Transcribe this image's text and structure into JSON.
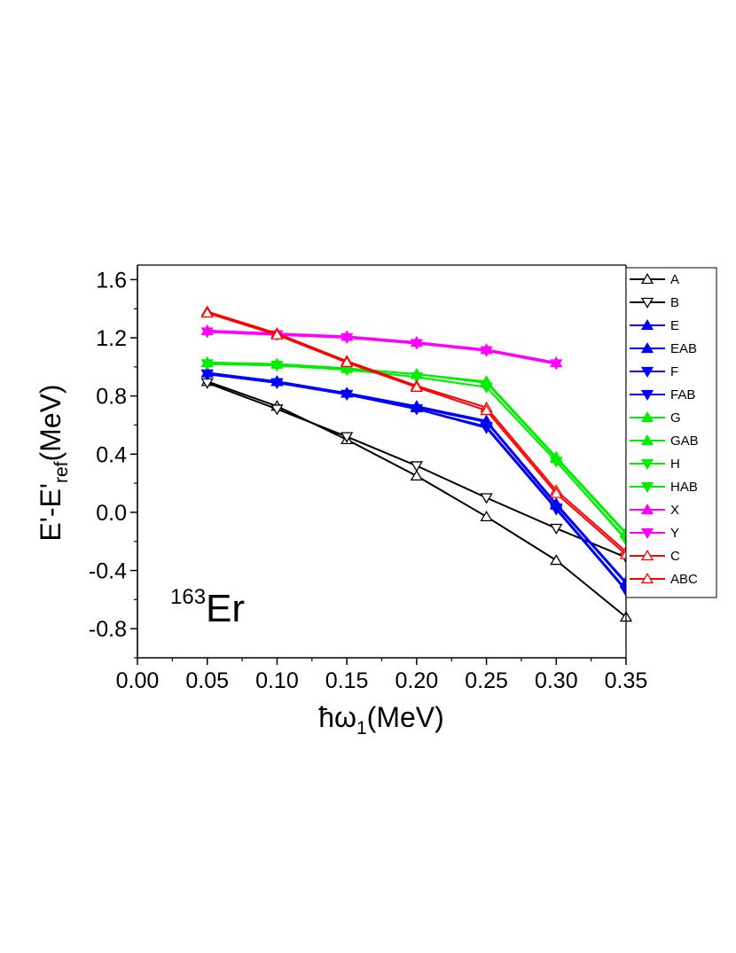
{
  "chart_data": {
    "type": "line",
    "title": "",
    "xlabel": {
      "prefix": "ħω",
      "sub": "1",
      "suffix": "(MeV)"
    },
    "ylabel": {
      "prefix": "E'-E'",
      "sub": "ref",
      "suffix": "(MeV)"
    },
    "xlim": [
      0.0,
      0.35
    ],
    "ylim": [
      -1.0,
      1.7
    ],
    "xticks": [
      "0.00",
      "0.05",
      "0.10",
      "0.15",
      "0.20",
      "0.25",
      "0.30",
      "0.35"
    ],
    "yticks": [
      "-0.8",
      "-0.4",
      "0.0",
      "0.4",
      "0.8",
      "1.2",
      "1.6"
    ],
    "xtick_values": [
      0.0,
      0.05,
      0.1,
      0.15,
      0.2,
      0.25,
      0.3,
      0.35
    ],
    "ytick_values": [
      -0.8,
      -0.4,
      0.0,
      0.4,
      0.8,
      1.2,
      1.6
    ],
    "grid": false,
    "legend_position": "right",
    "annotation": {
      "sup": "163",
      "text": "Er"
    },
    "series": [
      {
        "name": "A",
        "color": "#000000",
        "marker": "triangle-up-open",
        "x": [
          0.05,
          0.1,
          0.15,
          0.2,
          0.25,
          0.3,
          0.35
        ],
        "y": [
          0.9,
          0.73,
          0.5,
          0.25,
          -0.03,
          -0.33,
          -0.72
        ]
      },
      {
        "name": "B",
        "color": "#000000",
        "marker": "triangle-down-open",
        "x": [
          0.05,
          0.1,
          0.15,
          0.2,
          0.25,
          0.3,
          0.35
        ],
        "y": [
          0.89,
          0.71,
          0.52,
          0.32,
          0.1,
          -0.11,
          -0.31
        ]
      },
      {
        "name": "E",
        "color": "#0000ff",
        "marker": "triangle-up-filled",
        "x": [
          0.05,
          0.1,
          0.15,
          0.2,
          0.25,
          0.3,
          0.35
        ],
        "y": [
          0.96,
          0.9,
          0.82,
          0.73,
          0.63,
          0.06,
          -0.48
        ]
      },
      {
        "name": "EAB",
        "color": "#0000ff",
        "marker": "triangle-up-filled",
        "x": [
          0.05,
          0.1,
          0.15,
          0.2,
          0.25,
          0.3,
          0.35
        ],
        "y": [
          0.96,
          0.9,
          0.82,
          0.72,
          0.62,
          0.05,
          -0.49
        ]
      },
      {
        "name": "F",
        "color": "#0000ff",
        "marker": "triangle-down-filled",
        "x": [
          0.05,
          0.1,
          0.15,
          0.2,
          0.25,
          0.3,
          0.35
        ],
        "y": [
          0.95,
          0.89,
          0.81,
          0.71,
          0.59,
          0.03,
          -0.53
        ]
      },
      {
        "name": "FAB",
        "color": "#0000ff",
        "marker": "triangle-down-filled",
        "x": [
          0.05,
          0.1,
          0.15,
          0.2,
          0.25,
          0.3,
          0.35
        ],
        "y": [
          0.95,
          0.89,
          0.81,
          0.71,
          0.58,
          0.02,
          -0.54
        ]
      },
      {
        "name": "G",
        "color": "#00ee00",
        "marker": "triangle-up-filled",
        "x": [
          0.05,
          0.1,
          0.15,
          0.2,
          0.25,
          0.3,
          0.35
        ],
        "y": [
          1.03,
          1.02,
          0.99,
          0.95,
          0.9,
          0.38,
          -0.14
        ]
      },
      {
        "name": "GAB",
        "color": "#00ee00",
        "marker": "triangle-up-filled",
        "x": [
          0.05,
          0.1,
          0.15,
          0.2,
          0.25,
          0.3,
          0.35
        ],
        "y": [
          1.03,
          1.02,
          0.99,
          0.95,
          0.89,
          0.37,
          -0.15
        ]
      },
      {
        "name": "H",
        "color": "#00ee00",
        "marker": "triangle-down-filled",
        "x": [
          0.05,
          0.1,
          0.15,
          0.2,
          0.25,
          0.3,
          0.35
        ],
        "y": [
          1.02,
          1.01,
          0.98,
          0.93,
          0.86,
          0.35,
          -0.18
        ]
      },
      {
        "name": "HAB",
        "color": "#00ee00",
        "marker": "triangle-down-filled",
        "x": [
          0.05,
          0.1,
          0.15,
          0.2,
          0.25,
          0.3,
          0.35
        ],
        "y": [
          1.02,
          1.01,
          0.98,
          0.93,
          0.86,
          0.35,
          -0.19
        ]
      },
      {
        "name": "X",
        "color": "#ff00ff",
        "marker": "triangle-up-filled",
        "x": [
          0.05,
          0.1,
          0.15,
          0.2,
          0.25,
          0.3
        ],
        "y": [
          1.25,
          1.23,
          1.21,
          1.17,
          1.12,
          1.03
        ]
      },
      {
        "name": "Y",
        "color": "#ff00ff",
        "marker": "triangle-down-filled",
        "x": [
          0.05,
          0.1,
          0.15,
          0.2,
          0.25,
          0.3
        ],
        "y": [
          1.24,
          1.22,
          1.2,
          1.16,
          1.11,
          1.02
        ]
      },
      {
        "name": "C",
        "color": "#ff0000",
        "marker": "triangle-up-open",
        "x": [
          0.05,
          0.1,
          0.15,
          0.2,
          0.25,
          0.3,
          0.35
        ],
        "y": [
          1.38,
          1.23,
          1.04,
          0.87,
          0.72,
          0.15,
          -0.27
        ]
      },
      {
        "name": "ABC",
        "color": "#ff0000",
        "marker": "triangle-up-open",
        "x": [
          0.05,
          0.1,
          0.15,
          0.2,
          0.25,
          0.3,
          0.35
        ],
        "y": [
          1.37,
          1.22,
          1.03,
          0.86,
          0.7,
          0.13,
          -0.29
        ]
      }
    ]
  }
}
